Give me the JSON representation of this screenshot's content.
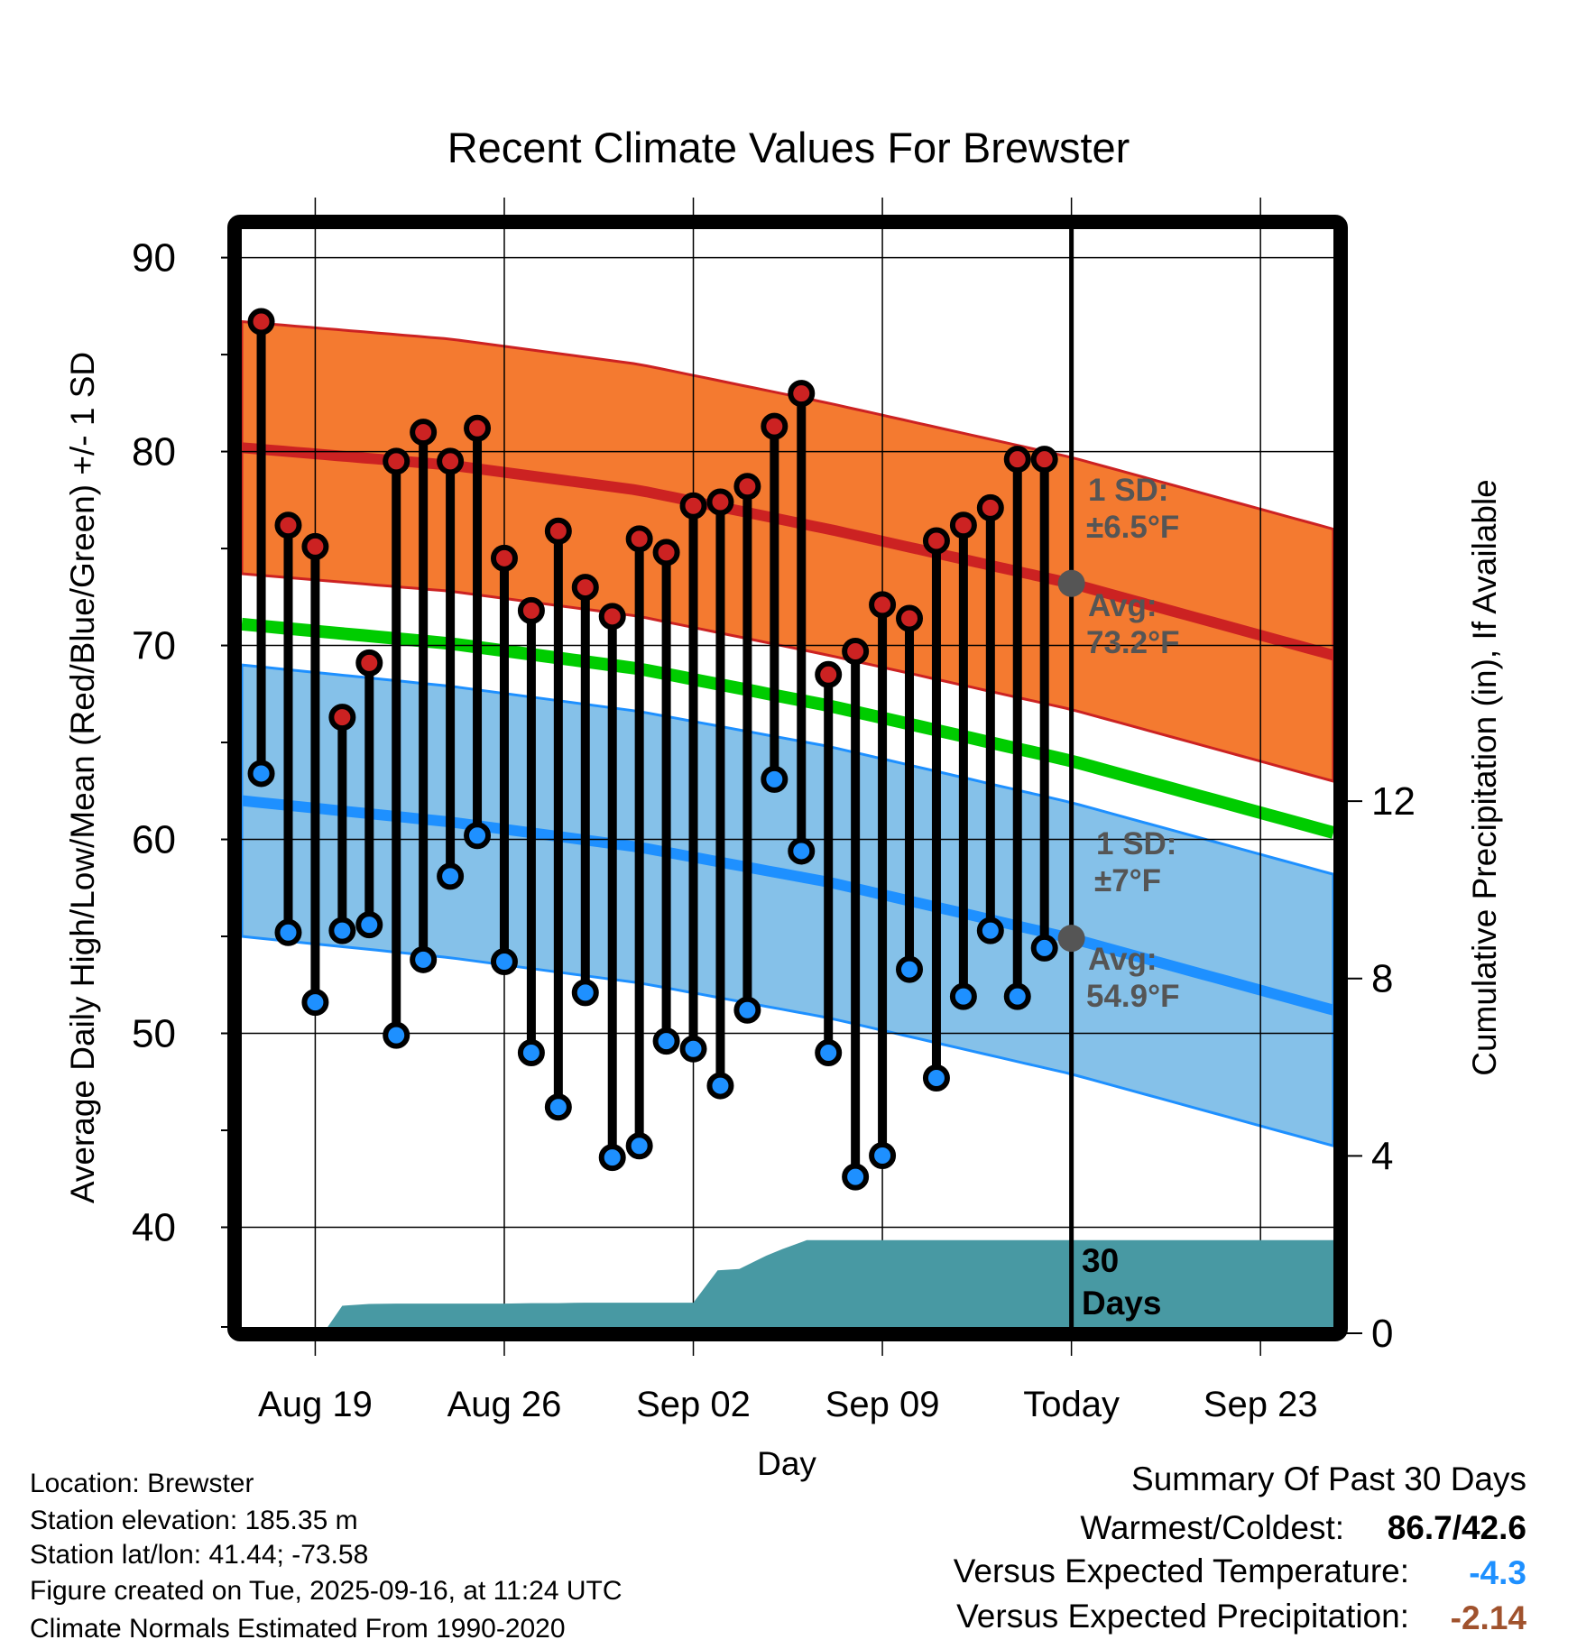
{
  "chart_data": {
    "type": "line",
    "title": "Recent Climate Values For Brewster",
    "xlabel": "Day",
    "ylabel": "Average Daily High/Low/Mean (Red/Blue/Green) +/- 1 SD",
    "y2label": "Cumulative Precipitation (in), If Available",
    "ylim": [
      34.86,
      91.47
    ],
    "y2lim": [
      0,
      24.9
    ],
    "xlim_days": [
      -0.72,
      39.7
    ],
    "start_date": "Aug 17",
    "today_day": 30,
    "yticks": [
      40,
      50,
      60,
      70,
      80,
      90
    ],
    "y2ticks": [
      0,
      4,
      8,
      12
    ],
    "xticks": [
      {
        "day": 2,
        "label": "Aug 19"
      },
      {
        "day": 9,
        "label": "Aug 26"
      },
      {
        "day": 16,
        "label": "Sep 02"
      },
      {
        "day": 23,
        "label": "Sep 09"
      },
      {
        "day": 30,
        "label": "Today"
      },
      {
        "day": 37,
        "label": "Sep 23"
      }
    ],
    "grid": true,
    "highs": [
      86.7,
      76.2,
      75.1,
      66.3,
      69.1,
      79.5,
      81.0,
      79.5,
      81.2,
      74.5,
      71.8,
      75.9,
      73.0,
      71.5,
      75.5,
      74.8,
      77.2,
      77.4,
      78.2,
      81.3,
      83.0,
      68.5,
      69.7,
      72.1,
      71.4,
      75.4,
      76.2,
      77.1,
      79.6,
      79.6
    ],
    "lows": [
      63.4,
      55.2,
      51.6,
      55.3,
      55.6,
      49.9,
      53.8,
      58.1,
      60.2,
      53.7,
      49.0,
      46.2,
      52.1,
      43.6,
      44.2,
      49.6,
      49.2,
      47.3,
      51.2,
      63.1,
      59.4,
      49.0,
      42.6,
      43.7,
      53.3,
      47.7,
      51.9,
      55.3,
      51.9,
      54.4
    ],
    "normal_days": [
      -0.72,
      7,
      14,
      21,
      30,
      39.7
    ],
    "normal_high": [
      80.2,
      79.3,
      78.0,
      76.0,
      73.2,
      69.5
    ],
    "normal_low": [
      62.0,
      60.9,
      59.6,
      57.8,
      54.9,
      51.2
    ],
    "high_sd": 6.5,
    "low_sd": 7,
    "precip_days": [
      0,
      1,
      2,
      2.3,
      3,
      4,
      5,
      6,
      7,
      8,
      9,
      10,
      11,
      12,
      13,
      14,
      15,
      16,
      16.9,
      17.7,
      18.7,
      19.3,
      20.2,
      21,
      22,
      23,
      24,
      25,
      26,
      27,
      28,
      29,
      30,
      39.7
    ],
    "precip_cum": [
      0,
      0,
      0,
      0,
      0.62,
      0.66,
      0.67,
      0.67,
      0.67,
      0.67,
      0.67,
      0.68,
      0.68,
      0.69,
      0.69,
      0.69,
      0.69,
      0.69,
      1.42,
      1.45,
      1.75,
      1.9,
      2.1,
      2.1,
      2.1,
      2.1,
      2.1,
      2.1,
      2.1,
      2.1,
      2.1,
      2.1,
      2.1,
      2.1
    ],
    "annotations": {
      "high_sd_label": "1 SD:",
      "high_sd_value": "±6.5°F",
      "high_avg_label": "Avg:",
      "high_avg_value": "73.2°F",
      "low_sd_label": "1 SD:",
      "low_sd_value": "±7°F",
      "low_avg_label": "Avg:",
      "low_avg_value": "54.9°F",
      "period_num": "30",
      "period_unit": "Days"
    },
    "colors": {
      "high_band": "#F47A30",
      "high_line": "#CC2222",
      "mean_line": "#00CC00",
      "low_band": "#85C1E9",
      "low_line": "#1E90FF",
      "precip": "#4899A3",
      "high_dot": "#CC2222",
      "low_dot": "#1E90FF",
      "annot": "#555555"
    }
  },
  "footer": {
    "location": "Location: Brewster",
    "elevation": "Station elevation: 185.35 m",
    "latlon": "Station lat/lon: 41.44; -73.58",
    "created": "Figure created on Tue, 2025-09-16, at 11:24 UTC",
    "normals": "Climate Normals Estimated From 1990-2020"
  },
  "summary": {
    "title": "Summary Of Past 30 Days",
    "warm_cold_label": "Warmest/Coldest:",
    "warm_cold_value": "86.7/42.6",
    "temp_label": "Versus Expected Temperature:",
    "temp_value": "-4.3",
    "temp_color": "#1E90FF",
    "precip_label": "Versus Expected Precipitation:",
    "precip_value": "-2.14",
    "precip_color": "#A0522D"
  }
}
